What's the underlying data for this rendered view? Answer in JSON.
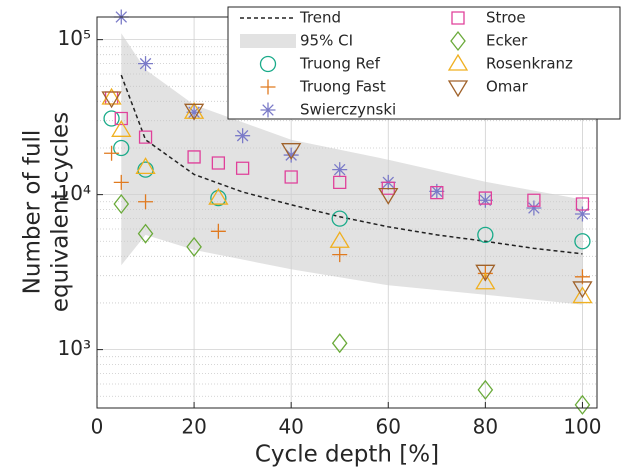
{
  "chart_data": {
    "type": "scatter",
    "xlabel": "Cycle depth [%]",
    "ylabel": [
      "Number of full",
      "equivalent cycles"
    ],
    "xlim": [
      0,
      103
    ],
    "xticks": [
      0,
      20,
      40,
      60,
      80,
      100
    ],
    "ylim": [
      420,
      140000
    ],
    "log_y": true,
    "grid": true,
    "yticks": [
      {
        "value": 1000,
        "label": "10³"
      },
      {
        "value": 10000,
        "label": "10⁴"
      },
      {
        "value": 100000,
        "label": "10⁵"
      }
    ],
    "yminorticks": [
      500,
      600,
      700,
      800,
      900,
      2000,
      3000,
      4000,
      5000,
      6000,
      7000,
      8000,
      9000,
      20000,
      30000,
      40000,
      50000,
      60000,
      70000,
      80000,
      90000
    ],
    "legend": "upper right",
    "trend": {
      "name": "Trend",
      "color": "#222222",
      "x": [
        5,
        10,
        20,
        30,
        40,
        50,
        60,
        70,
        80,
        90,
        100
      ],
      "values": [
        59000,
        22600,
        13500,
        10400,
        8600,
        7200,
        6200,
        5500,
        5000,
        4500,
        4150
      ]
    },
    "ci": {
      "name": "95% CI",
      "color": "#e2e2e2",
      "x": [
        5,
        10,
        20,
        40,
        60,
        80,
        100
      ],
      "upper": [
        110000,
        64000,
        38000,
        22600,
        16800,
        12100,
        9300
      ],
      "lower": [
        3500,
        5500,
        4400,
        3300,
        2600,
        2260,
        1950
      ]
    },
    "series": [
      {
        "name": "Truong Ref",
        "color": "#1aab8a",
        "marker": "o",
        "x": [
          3,
          5,
          10,
          25,
          50,
          80,
          100
        ],
        "values": [
          31000,
          20000,
          14500,
          9500,
          7000,
          5500,
          5000
        ]
      },
      {
        "name": "Truong Fast",
        "color": "#e07a1f",
        "marker": "+",
        "x": [
          3,
          5,
          10,
          25,
          50,
          80,
          100
        ],
        "values": [
          18500,
          12000,
          9000,
          5800,
          4100,
          3100,
          2950
        ]
      },
      {
        "name": "Swierczynski",
        "color": "#7b7bc8",
        "marker": "*",
        "x": [
          5,
          10,
          20,
          30,
          40,
          50,
          60,
          70,
          80,
          90,
          100
        ],
        "values": [
          140000,
          70000,
          34000,
          24000,
          18000,
          14500,
          12000,
          10500,
          9200,
          8200,
          7500
        ]
      },
      {
        "name": "Stroe",
        "color": "#e0409a",
        "marker": "s",
        "x": [
          3,
          5,
          10,
          20,
          25,
          30,
          40,
          50,
          60,
          70,
          80,
          90,
          100
        ],
        "values": [
          42000,
          31000,
          23500,
          17500,
          16000,
          14800,
          13000,
          12000,
          11000,
          10300,
          9500,
          9200,
          8700
        ]
      },
      {
        "name": "Ecker",
        "color": "#6aaa3a",
        "marker": "d",
        "x": [
          5,
          10,
          20,
          50,
          80,
          100
        ],
        "values": [
          8700,
          5600,
          4600,
          1100,
          550,
          440
        ]
      },
      {
        "name": "Rosenkranz",
        "color": "#f0b020",
        "marker": "^",
        "x": [
          3,
          5,
          10,
          20,
          25,
          50,
          80,
          100
        ],
        "values": [
          42000,
          26000,
          15000,
          34000,
          9500,
          5000,
          2700,
          2200
        ]
      },
      {
        "name": "Omar",
        "color": "#a0622a",
        "marker": "v",
        "x": [
          3,
          20,
          40,
          60,
          80,
          100
        ],
        "values": [
          42000,
          35000,
          19500,
          10000,
          3200,
          2500
        ]
      }
    ]
  }
}
